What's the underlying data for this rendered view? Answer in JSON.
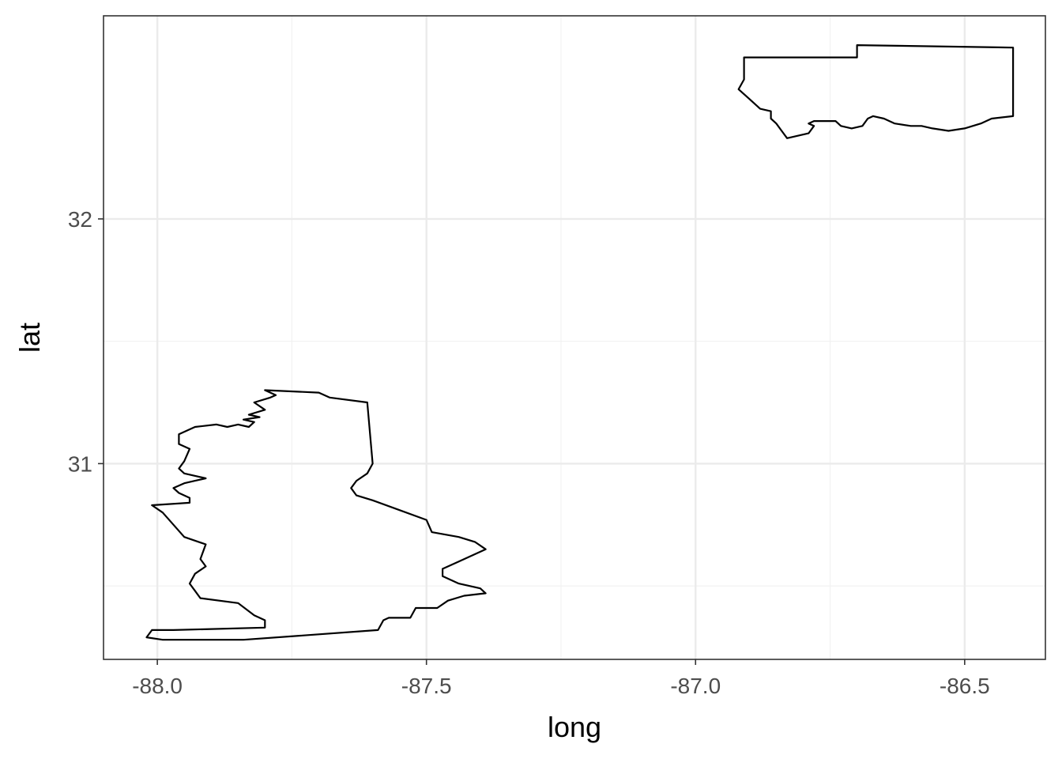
{
  "chart_data": {
    "type": "map",
    "xlabel": "long",
    "ylabel": "lat",
    "xlim": [
      -88.1,
      -86.35
    ],
    "ylim": [
      30.2,
      32.83
    ],
    "x_ticks": [
      {
        "value": -88.0,
        "label": "-88.0"
      },
      {
        "value": -87.5,
        "label": "-87.5"
      },
      {
        "value": -87.0,
        "label": "-87.0"
      },
      {
        "value": -86.5,
        "label": "-86.5"
      }
    ],
    "y_ticks": [
      {
        "value": 31,
        "label": "31"
      },
      {
        "value": 32,
        "label": "32"
      }
    ],
    "x_minor": [
      -87.75,
      -87.25,
      -86.75
    ],
    "y_minor": [
      30.5,
      31.5
    ],
    "grid": true,
    "colors": {
      "outline": "#000000",
      "major_grid": "#ebebeb",
      "minor_grid": "#f2f2f2",
      "panel_border": "#333333"
    },
    "polygons": [
      {
        "points": [
          [
            -87.8,
            31.3
          ],
          [
            -87.7,
            31.29
          ],
          [
            -87.68,
            31.27
          ],
          [
            -87.61,
            31.25
          ],
          [
            -87.6,
            31.0
          ],
          [
            -87.61,
            30.96
          ],
          [
            -87.63,
            30.93
          ],
          [
            -87.64,
            30.9
          ],
          [
            -87.63,
            30.87
          ],
          [
            -87.6,
            30.85
          ],
          [
            -87.55,
            30.81
          ],
          [
            -87.5,
            30.77
          ],
          [
            -87.49,
            30.72
          ],
          [
            -87.44,
            30.7
          ],
          [
            -87.41,
            30.68
          ],
          [
            -87.39,
            30.65
          ],
          [
            -87.44,
            30.6
          ],
          [
            -87.47,
            30.57
          ],
          [
            -87.47,
            30.54
          ],
          [
            -87.44,
            30.51
          ],
          [
            -87.4,
            30.49
          ],
          [
            -87.39,
            30.47
          ],
          [
            -87.43,
            30.46
          ],
          [
            -87.46,
            30.44
          ],
          [
            -87.48,
            30.41
          ],
          [
            -87.52,
            30.41
          ],
          [
            -87.53,
            30.37
          ],
          [
            -87.57,
            30.37
          ],
          [
            -87.58,
            30.36
          ],
          [
            -87.59,
            30.32
          ],
          [
            -87.84,
            30.28
          ],
          [
            -87.88,
            30.28
          ],
          [
            -87.99,
            30.28
          ],
          [
            -88.02,
            30.29
          ],
          [
            -88.01,
            30.32
          ],
          [
            -87.97,
            30.32
          ],
          [
            -87.8,
            30.33
          ],
          [
            -87.8,
            30.36
          ],
          [
            -87.82,
            30.38
          ],
          [
            -87.85,
            30.43
          ],
          [
            -87.92,
            30.45
          ],
          [
            -87.93,
            30.48
          ],
          [
            -87.94,
            30.51
          ],
          [
            -87.93,
            30.55
          ],
          [
            -87.91,
            30.58
          ],
          [
            -87.92,
            30.61
          ],
          [
            -87.91,
            30.67
          ],
          [
            -87.95,
            30.7
          ],
          [
            -87.99,
            30.8
          ],
          [
            -88.01,
            30.83
          ],
          [
            -87.94,
            30.84
          ],
          [
            -87.94,
            30.86
          ],
          [
            -87.96,
            30.88
          ],
          [
            -87.97,
            30.9
          ],
          [
            -87.95,
            30.92
          ],
          [
            -87.93,
            30.93
          ],
          [
            -87.91,
            30.94
          ],
          [
            -87.95,
            30.96
          ],
          [
            -87.96,
            30.98
          ],
          [
            -87.95,
            31.01
          ],
          [
            -87.94,
            31.06
          ],
          [
            -87.96,
            31.08
          ],
          [
            -87.96,
            31.12
          ],
          [
            -87.93,
            31.15
          ],
          [
            -87.89,
            31.16
          ],
          [
            -87.87,
            31.15
          ],
          [
            -87.85,
            31.16
          ],
          [
            -87.83,
            31.15
          ],
          [
            -87.82,
            31.17
          ],
          [
            -87.84,
            31.18
          ],
          [
            -87.81,
            31.19
          ],
          [
            -87.83,
            31.2
          ],
          [
            -87.8,
            31.22
          ],
          [
            -87.82,
            31.25
          ],
          [
            -87.79,
            31.27
          ],
          [
            -87.78,
            31.28
          ],
          [
            -87.8,
            31.3
          ]
        ]
      },
      {
        "points": [
          [
            -86.91,
            32.66
          ],
          [
            -86.7,
            32.66
          ],
          [
            -86.7,
            32.71
          ],
          [
            -86.41,
            32.7
          ],
          [
            -86.41,
            32.42
          ],
          [
            -86.45,
            32.41
          ],
          [
            -86.47,
            32.39
          ],
          [
            -86.5,
            32.37
          ],
          [
            -86.53,
            32.36
          ],
          [
            -86.56,
            32.37
          ],
          [
            -86.58,
            32.38
          ],
          [
            -86.6,
            32.38
          ],
          [
            -86.63,
            32.39
          ],
          [
            -86.65,
            32.41
          ],
          [
            -86.67,
            32.42
          ],
          [
            -86.68,
            32.41
          ],
          [
            -86.69,
            32.38
          ],
          [
            -86.71,
            32.37
          ],
          [
            -86.73,
            32.38
          ],
          [
            -86.74,
            32.4
          ],
          [
            -86.76,
            32.4
          ],
          [
            -86.78,
            32.4
          ],
          [
            -86.79,
            32.39
          ],
          [
            -86.78,
            32.38
          ],
          [
            -86.79,
            32.35
          ],
          [
            -86.81,
            32.34
          ],
          [
            -86.83,
            32.33
          ],
          [
            -86.84,
            32.36
          ],
          [
            -86.85,
            32.39
          ],
          [
            -86.86,
            32.41
          ],
          [
            -86.86,
            32.44
          ],
          [
            -86.88,
            32.45
          ],
          [
            -86.9,
            32.49
          ],
          [
            -86.92,
            32.53
          ],
          [
            -86.91,
            32.57
          ],
          [
            -86.91,
            32.66
          ]
        ]
      }
    ]
  }
}
